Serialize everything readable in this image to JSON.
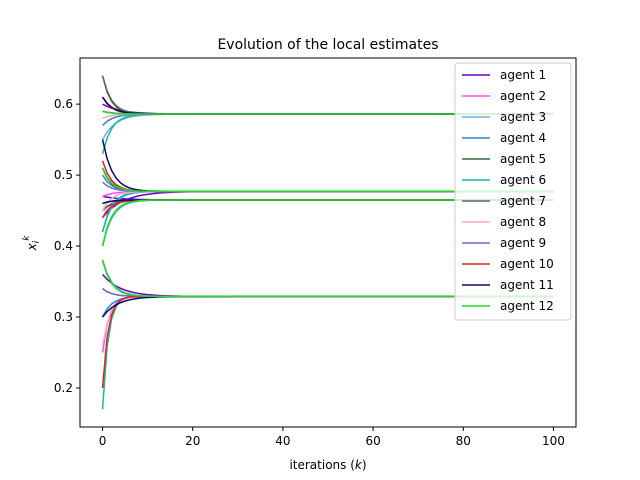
{
  "chart_data": {
    "type": "line",
    "title": "Evolution of the local estimates",
    "xlabel": "iterations (k)",
    "xlabel_prefix": "iterations (",
    "xlabel_var": "k",
    "xlabel_suffix": ")",
    "ylabel": "x_i^k",
    "ylabel_base": "x",
    "ylabel_sub": "i",
    "ylabel_sup": "k",
    "xlim": [
      -5,
      105
    ],
    "ylim": [
      0.145,
      0.665
    ],
    "xticks": [
      0,
      20,
      40,
      60,
      80,
      100
    ],
    "yticks": [
      0.2,
      0.3,
      0.4,
      0.5,
      0.6
    ],
    "xtick_labels": [
      "0",
      "20",
      "40",
      "60",
      "80",
      "100"
    ],
    "ytick_labels": [
      "0.2",
      "0.3",
      "0.4",
      "0.5",
      "0.6"
    ],
    "grid": false,
    "legend_position": "upper-right",
    "iterations": 100,
    "equilibria": [
      0.586,
      0.477,
      0.465,
      0.329
    ],
    "series": [
      {
        "name": "agent 1",
        "color": "#6a00c8",
        "components": [
          {
            "start": 0.6,
            "end": 0.586,
            "rate": 0.25
          },
          {
            "start": 0.44,
            "end": 0.477,
            "rate": 0.22
          },
          {
            "start": 0.47,
            "end": 0.465,
            "rate": 0.25
          },
          {
            "start": 0.36,
            "end": 0.329,
            "rate": 0.25
          }
        ]
      },
      {
        "name": "agent 2",
        "color": "#ee55ee",
        "components": [
          {
            "start": 0.59,
            "end": 0.586,
            "rate": 0.4
          },
          {
            "start": 0.47,
            "end": 0.477,
            "rate": 0.4
          },
          {
            "start": 0.45,
            "end": 0.465,
            "rate": 0.4
          },
          {
            "start": 0.25,
            "end": 0.329,
            "rate": 0.7
          }
        ]
      },
      {
        "name": "agent 3",
        "color": "#6aaee8",
        "components": [
          {
            "start": 0.55,
            "end": 0.586,
            "rate": 0.35
          },
          {
            "start": 0.42,
            "end": 0.477,
            "rate": 0.45
          },
          {
            "start": 0.4,
            "end": 0.465,
            "rate": 0.45
          },
          {
            "start": 0.38,
            "end": 0.329,
            "rate": 0.45
          }
        ]
      },
      {
        "name": "agent 4",
        "color": "#2a88cc",
        "components": [
          {
            "start": 0.57,
            "end": 0.586,
            "rate": 0.45
          },
          {
            "start": 0.5,
            "end": 0.477,
            "rate": 0.5
          },
          {
            "start": 0.44,
            "end": 0.465,
            "rate": 0.5
          },
          {
            "start": 0.3,
            "end": 0.329,
            "rate": 0.5
          }
        ]
      },
      {
        "name": "agent 5",
        "color": "#2e6e3a",
        "components": [
          {
            "start": 0.64,
            "end": 0.586,
            "rate": 0.55
          },
          {
            "start": 0.51,
            "end": 0.477,
            "rate": 0.5
          },
          {
            "start": 0.45,
            "end": 0.465,
            "rate": 0.5
          },
          {
            "start": 0.38,
            "end": 0.329,
            "rate": 0.5
          }
        ]
      },
      {
        "name": "agent 6",
        "color": "#1ab89a",
        "components": [
          {
            "start": 0.53,
            "end": 0.586,
            "rate": 0.5
          },
          {
            "start": 0.42,
            "end": 0.477,
            "rate": 0.5
          },
          {
            "start": 0.4,
            "end": 0.465,
            "rate": 0.5
          },
          {
            "start": 0.17,
            "end": 0.329,
            "rate": 0.8
          }
        ]
      },
      {
        "name": "agent 7",
        "color": "#666666",
        "components": [
          {
            "start": 0.64,
            "end": 0.586,
            "rate": 0.5
          },
          {
            "start": 0.51,
            "end": 0.477,
            "rate": 0.55
          },
          {
            "start": 0.46,
            "end": 0.465,
            "rate": 0.5
          },
          {
            "start": 0.34,
            "end": 0.329,
            "rate": 0.5
          }
        ]
      },
      {
        "name": "agent 8",
        "color": "#f4aac8",
        "components": [
          {
            "start": 0.58,
            "end": 0.586,
            "rate": 0.5
          },
          {
            "start": 0.45,
            "end": 0.477,
            "rate": 0.5
          },
          {
            "start": 0.44,
            "end": 0.465,
            "rate": 0.5
          },
          {
            "start": 0.26,
            "end": 0.329,
            "rate": 0.6
          }
        ]
      },
      {
        "name": "agent 9",
        "color": "#7766dd",
        "components": [
          {
            "start": 0.59,
            "end": 0.586,
            "rate": 0.5
          },
          {
            "start": 0.49,
            "end": 0.477,
            "rate": 0.5
          },
          {
            "start": 0.46,
            "end": 0.465,
            "rate": 0.5
          },
          {
            "start": 0.34,
            "end": 0.329,
            "rate": 0.5
          }
        ]
      },
      {
        "name": "agent 10",
        "color": "#e02020",
        "components": [
          {
            "start": 0.61,
            "end": 0.586,
            "rate": 0.5
          },
          {
            "start": 0.52,
            "end": 0.477,
            "rate": 0.5
          },
          {
            "start": 0.44,
            "end": 0.465,
            "rate": 0.5
          },
          {
            "start": 0.2,
            "end": 0.329,
            "rate": 0.8
          }
        ]
      },
      {
        "name": "agent 11",
        "color": "#0a0a66",
        "components": [
          {
            "start": 0.61,
            "end": 0.586,
            "rate": 0.45
          },
          {
            "start": 0.55,
            "end": 0.477,
            "rate": 0.45
          },
          {
            "start": 0.46,
            "end": 0.465,
            "rate": 0.5
          },
          {
            "start": 0.3,
            "end": 0.329,
            "rate": 0.3
          }
        ]
      },
      {
        "name": "agent 12",
        "color": "#22dd22",
        "components": [
          {
            "start": 0.59,
            "end": 0.586,
            "rate": 0.5
          },
          {
            "start": 0.51,
            "end": 0.477,
            "rate": 0.5
          },
          {
            "start": 0.4,
            "end": 0.465,
            "rate": 0.5
          },
          {
            "start": 0.38,
            "end": 0.329,
            "rate": 0.5
          }
        ]
      }
    ]
  }
}
